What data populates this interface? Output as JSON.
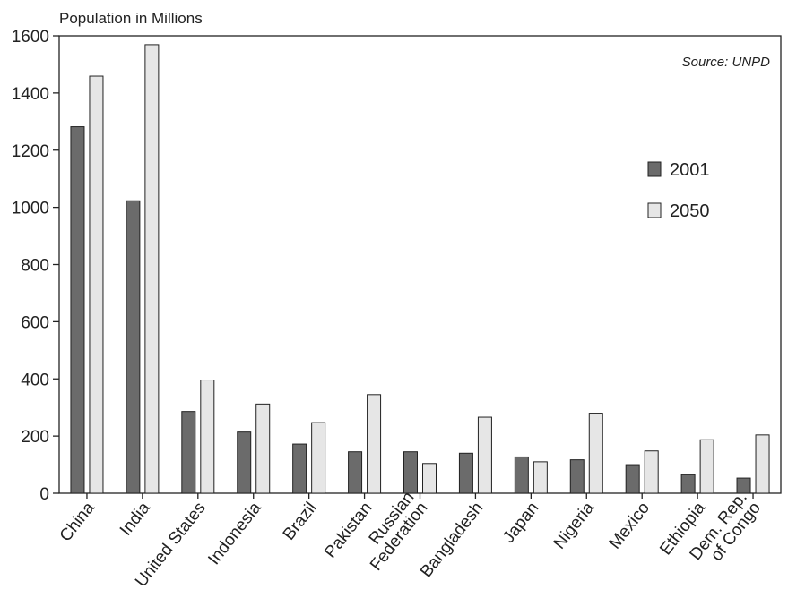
{
  "chart_data": {
    "type": "bar",
    "ylabel": "Population in Millions",
    "source": "Source: UNPD",
    "ylim": [
      0,
      1600
    ],
    "yticks": [
      "0",
      "200",
      "400",
      "600",
      "800",
      "1000",
      "1200",
      "1400",
      "1600"
    ],
    "grid": false,
    "legend_position": "right",
    "categories": [
      [
        "China"
      ],
      [
        "India"
      ],
      [
        "United States"
      ],
      [
        "Indonesia"
      ],
      [
        "Brazil"
      ],
      [
        "Pakistan"
      ],
      [
        "Russian",
        "Federation"
      ],
      [
        "Bangladesh"
      ],
      [
        "Japan"
      ],
      [
        "Nigeria"
      ],
      [
        "Mexico"
      ],
      [
        "Ethiopia"
      ],
      [
        "Dem. Rep.",
        "of Congo"
      ]
    ],
    "series": [
      {
        "name": "2001",
        "color": "#6b6b6b",
        "values": [
          1282,
          1023,
          286,
          214,
          172,
          145,
          145,
          140,
          127,
          117,
          100,
          65,
          53
        ]
      },
      {
        "name": "2050",
        "color": "#e6e6e6",
        "values": [
          1459,
          1569,
          396,
          312,
          247,
          345,
          104,
          266,
          110,
          280,
          148,
          187,
          204
        ]
      }
    ]
  }
}
